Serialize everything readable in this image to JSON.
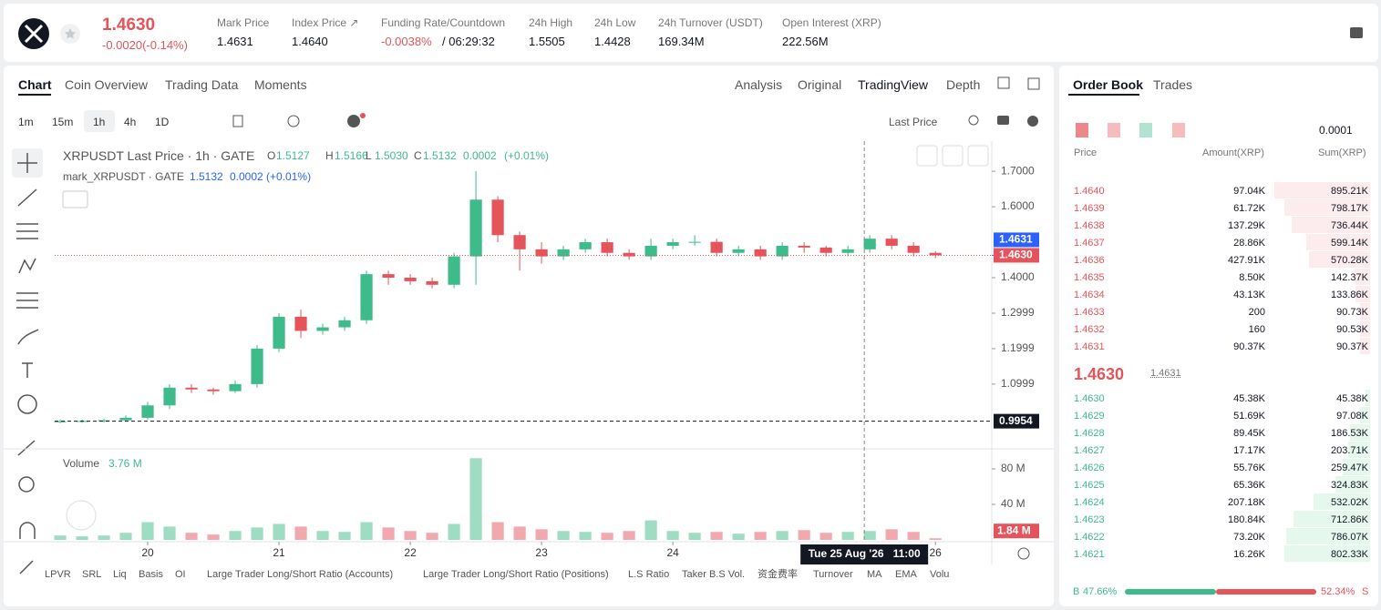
{
  "header": {
    "price": "1.4630",
    "change": "-0.0020(-0.14%)",
    "stats": [
      {
        "label": "Mark Price",
        "value": "1.4631"
      },
      {
        "label": "Index Price ↗",
        "value": "1.4640"
      },
      {
        "label": "Funding Rate/Countdown",
        "value": "-0.0038%",
        "extra": "/ 06:29:32"
      },
      {
        "label": "24h High",
        "value": "1.5505"
      },
      {
        "label": "24h Low",
        "value": "1.4428"
      },
      {
        "label": "24h Turnover (USDT)",
        "value": "169.34M"
      },
      {
        "label": "Open Interest (XRP)",
        "value": "222.56M"
      }
    ]
  },
  "tabs": [
    "Chart",
    "Coin Overview",
    "Trading Data",
    "Moments"
  ],
  "view_tabs": [
    "Analysis",
    "Original",
    "TradingView",
    "Depth"
  ],
  "intervals": [
    "1m",
    "15m",
    "1h",
    "4h",
    "1D"
  ],
  "price_type": "Last Price",
  "indicators": [
    "LPVR",
    "SRL",
    "Liq",
    "Basis",
    "OI",
    "Large Trader Long/Short Ratio (Accounts)",
    "Large Trader Long/Short Ratio (Positions)",
    "L.S Ratio",
    "Taker B.S Vol.",
    "资金费率",
    "Turnover",
    "MA",
    "EMA",
    "Volu"
  ],
  "chart_data": {
    "type": "candlestick",
    "symbol_label": "XRPUSDT Last Price · 1h · GATE",
    "ohlc_labels": [
      "O",
      "H",
      "L",
      "C"
    ],
    "ohlc_values": [
      "1.5127",
      "1.5166",
      "1.5030",
      "1.5132"
    ],
    "change": "0.0002",
    "change_pct": "(+0.01%)",
    "mark_label": "mark_XRPUSDT · GATE",
    "mark_values": [
      "1.5132",
      "0.0002 (+0.01%)"
    ],
    "up_color": "#3dbb8a",
    "down_color": "#e5545b",
    "x": [
      -16,
      -12,
      -8,
      -4,
      0,
      4,
      8,
      12,
      16,
      20,
      24,
      28,
      32,
      36,
      40,
      44,
      48,
      52,
      56,
      60,
      64,
      68,
      72,
      76,
      80,
      84,
      88,
      92,
      96,
      100,
      104,
      108,
      112,
      116,
      120,
      124,
      128,
      132,
      136,
      140,
      144
    ],
    "open": [
      0.994,
      0.995,
      0.996,
      0.998,
      1.005,
      1.04,
      1.09,
      1.085,
      1.08,
      1.1,
      1.2,
      1.29,
      1.25,
      1.26,
      1.28,
      1.41,
      1.4,
      1.39,
      1.38,
      1.46,
      1.62,
      1.52,
      1.48,
      1.46,
      1.48,
      1.5,
      1.47,
      1.46,
      1.49,
      1.5,
      1.501,
      1.47,
      1.48,
      1.46,
      1.49,
      1.485,
      1.47,
      1.48,
      1.51,
      1.49,
      1.47
    ],
    "high": [
      1.0,
      1.0,
      1.003,
      1.012,
      1.05,
      1.1,
      1.1,
      1.09,
      1.11,
      1.21,
      1.3,
      1.31,
      1.27,
      1.29,
      1.42,
      1.42,
      1.41,
      1.4,
      1.47,
      1.7,
      1.63,
      1.53,
      1.5,
      1.49,
      1.51,
      1.51,
      1.48,
      1.51,
      1.51,
      1.52,
      1.51,
      1.49,
      1.49,
      1.5,
      1.5,
      1.49,
      1.49,
      1.52,
      1.52,
      1.5,
      1.475
    ],
    "low": [
      0.99,
      0.991,
      0.992,
      0.994,
      1.0,
      1.03,
      1.075,
      1.07,
      1.075,
      1.09,
      1.19,
      1.23,
      1.24,
      1.25,
      1.27,
      1.38,
      1.38,
      1.37,
      1.37,
      1.38,
      1.5,
      1.42,
      1.44,
      1.45,
      1.47,
      1.46,
      1.45,
      1.45,
      1.48,
      1.49,
      1.46,
      1.46,
      1.45,
      1.45,
      1.47,
      1.46,
      1.46,
      1.47,
      1.48,
      1.46,
      1.455
    ],
    "close": [
      0.995,
      0.996,
      0.998,
      1.005,
      1.04,
      1.09,
      1.085,
      1.08,
      1.1,
      1.2,
      1.29,
      1.25,
      1.26,
      1.28,
      1.41,
      1.4,
      1.39,
      1.38,
      1.46,
      1.62,
      1.52,
      1.48,
      1.46,
      1.48,
      1.5,
      1.47,
      1.46,
      1.49,
      1.5,
      1.501,
      1.47,
      1.48,
      1.46,
      1.49,
      1.485,
      1.47,
      1.48,
      1.51,
      1.49,
      1.47,
      1.463
    ],
    "volume": [
      5,
      4,
      5,
      8,
      20,
      15,
      8,
      6,
      10,
      14,
      18,
      15,
      10,
      9,
      20,
      14,
      10,
      8,
      18,
      92,
      20,
      15,
      12,
      10,
      9,
      8,
      10,
      22,
      10,
      8,
      9,
      7,
      9,
      10,
      11,
      8,
      9,
      10,
      12,
      9,
      1.84
    ],
    "xlim": [
      -17,
      154.3
    ],
    "xticks": [
      {
        "value": 0,
        "label": "20"
      },
      {
        "value": 24,
        "label": "21"
      },
      {
        "value": 48,
        "label": "22"
      },
      {
        "value": 72,
        "label": "23"
      },
      {
        "value": 96,
        "label": "24"
      },
      {
        "value": 144,
        "label": "26"
      }
    ],
    "ylim": [
      0.92,
      1.785
    ],
    "yticks": [
      {
        "value": 1.0999,
        "label": "1.0999"
      },
      {
        "value": 1.1999,
        "label": "1.1999"
      },
      {
        "value": 1.2999,
        "label": "1.2999"
      },
      {
        "value": 1.4,
        "label": "1.4000"
      },
      {
        "value": 1.6,
        "label": "1.6000"
      },
      {
        "value": 1.7,
        "label": "1.7000"
      }
    ],
    "markers": [
      {
        "value": 1.4631,
        "label": "1.4631",
        "color": "#2962ff"
      },
      {
        "value": 1.463,
        "label": "1.4630",
        "color": "#e5545b"
      },
      {
        "value": 0.9954,
        "label": "0.9954",
        "color": "#131722"
      }
    ],
    "crosshair_x": {
      "value": 131,
      "label": "Tue 25 Aug '26   11:00"
    },
    "volume_title": "Volume",
    "volume_value": "3.76 M",
    "last_volume_label": "1.84 M",
    "vlim": [
      0,
      100.5
    ],
    "vticks": [
      {
        "value": 40,
        "label": "40 M"
      },
      {
        "value": 80,
        "label": "80 M"
      }
    ]
  },
  "order_book": {
    "tabs": [
      "Order Book",
      "Trades"
    ],
    "precision": "0.0001",
    "columns": [
      "Price",
      "Amount(XRP)",
      "Sum(XRP)"
    ],
    "asks": [
      [
        "1.4640",
        "97.04K",
        "895.21K"
      ],
      [
        "1.4639",
        "61.72K",
        "798.17K"
      ],
      [
        "1.4638",
        "137.29K",
        "736.44K"
      ],
      [
        "1.4637",
        "28.86K",
        "599.14K"
      ],
      [
        "1.4636",
        "427.91K",
        "570.28K"
      ],
      [
        "1.4635",
        "8.50K",
        "142.37K"
      ],
      [
        "1.4634",
        "43.13K",
        "133.86K"
      ],
      [
        "1.4633",
        "200",
        "90.73K"
      ],
      [
        "1.4632",
        "160",
        "90.53K"
      ],
      [
        "1.4631",
        "90.37K",
        "90.37K"
      ]
    ],
    "mid_price": "1.4630",
    "mid_mark": "1.4631",
    "bids": [
      [
        "1.4630",
        "45.38K",
        "45.38K"
      ],
      [
        "1.4629",
        "51.69K",
        "97.08K"
      ],
      [
        "1.4628",
        "89.45K",
        "186.53K"
      ],
      [
        "1.4627",
        "17.17K",
        "203.71K"
      ],
      [
        "1.4626",
        "55.76K",
        "259.47K"
      ],
      [
        "1.4625",
        "65.36K",
        "324.83K"
      ],
      [
        "1.4624",
        "207.18K",
        "532.02K"
      ],
      [
        "1.4623",
        "180.84K",
        "712.86K"
      ],
      [
        "1.4622",
        "73.20K",
        "786.07K"
      ],
      [
        "1.4621",
        "16.26K",
        "802.33K"
      ]
    ],
    "buy_label": "B",
    "buy_pct": "47.66%",
    "sell_pct": "52.34%",
    "sell_label": "S"
  }
}
